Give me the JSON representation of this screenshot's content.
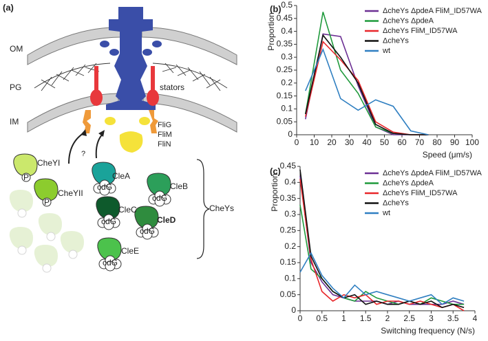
{
  "diagram": {
    "panel_label": "(a)",
    "labels": {
      "om": "OM",
      "pg": "PG",
      "im": "IM",
      "stators": "stators",
      "flig": "FliG",
      "flim": "FliM",
      "flin": "FliN",
      "question": "?",
      "cheyi": "CheYI",
      "cheyii": "CheYII",
      "clea": "CleA",
      "cleb": "CleB",
      "clec": "CleC",
      "cled": "CleD",
      "clee": "CleE",
      "cheys": "CheYs",
      "phospho": "P",
      "cdg": "cdG"
    }
  },
  "chart_data": [
    {
      "type": "line",
      "panel_label": "(b)",
      "x_label": "Speed (μm/s)",
      "y_label": "Proportion",
      "x": [
        5,
        15,
        25,
        35,
        45,
        55,
        65,
        75
      ],
      "xlim": [
        0,
        100
      ],
      "xticks": [
        0,
        10,
        20,
        30,
        40,
        50,
        60,
        70,
        80,
        90,
        100
      ],
      "ylim": [
        0,
        0.5
      ],
      "yticks": [
        0,
        0.05,
        0.1,
        0.15,
        0.2,
        0.25,
        0.3,
        0.35,
        0.4,
        0.45,
        0.5
      ],
      "series": [
        {
          "name": "ΔcheYs ΔpdeA FliM_ID57WA",
          "color": "#6b2f93",
          "values": [
            0.06,
            0.39,
            0.38,
            0.19,
            0.03,
            0,
            0,
            0
          ]
        },
        {
          "name": "ΔcheYs ΔpdeA",
          "color": "#1f9a3c",
          "values": [
            0.08,
            0.475,
            0.25,
            0.16,
            0.03,
            0.005,
            0,
            0
          ]
        },
        {
          "name": "ΔcheYs FliM_ID57WA",
          "color": "#e8262a",
          "values": [
            0.07,
            0.36,
            0.29,
            0.21,
            0.05,
            0.01,
            0,
            0
          ]
        },
        {
          "name": "ΔcheYs",
          "color": "#111111",
          "values": [
            0.08,
            0.385,
            0.3,
            0.2,
            0.04,
            0.005,
            0,
            0
          ]
        },
        {
          "name": "wt",
          "color": "#2f7fc1",
          "values": [
            0.17,
            0.33,
            0.14,
            0.095,
            0.135,
            0.11,
            0.015,
            0
          ]
        }
      ]
    },
    {
      "type": "line",
      "panel_label": "(c)",
      "x_label": "Switching frequency (N/s)",
      "y_label": "Proportion",
      "x": [
        0,
        0.25,
        0.5,
        0.75,
        1,
        1.25,
        1.5,
        1.75,
        2,
        2.25,
        2.5,
        2.75,
        3,
        3.25,
        3.5,
        3.75
      ],
      "xlim": [
        0,
        4
      ],
      "xticks": [
        0,
        0.5,
        1,
        1.5,
        2,
        2.5,
        3,
        3.5,
        4
      ],
      "ylim": [
        0,
        0.45
      ],
      "yticks": [
        0,
        0.05,
        0.1,
        0.15,
        0.2,
        0.25,
        0.3,
        0.35,
        0.4,
        0.45
      ],
      "series": [
        {
          "name": "ΔcheYs ΔpdeA FliM_ID57WA",
          "color": "#6b2f93",
          "values": [
            0.42,
            0.15,
            0.09,
            0.05,
            0.04,
            0.03,
            0.03,
            0.03,
            0.02,
            0.03,
            0.02,
            0.02,
            0.02,
            0.02,
            0.03,
            0.02
          ]
        },
        {
          "name": "ΔcheYs ΔpdeA",
          "color": "#1f9a3c",
          "values": [
            0.33,
            0.13,
            0.1,
            0.06,
            0.04,
            0.03,
            0.06,
            0.04,
            0.03,
            0.02,
            0.03,
            0.02,
            0.04,
            0.03,
            0.02,
            0.02
          ]
        },
        {
          "name": "ΔcheYs FliM_ID57WA",
          "color": "#e8262a",
          "values": [
            0.41,
            0.16,
            0.06,
            0.03,
            0.05,
            0.04,
            0.05,
            0.02,
            0.03,
            0.03,
            0.02,
            0.03,
            0.02,
            0.01,
            0.02,
            0
          ]
        },
        {
          "name": "ΔcheYs",
          "color": "#111111",
          "values": [
            0.44,
            0.17,
            0.1,
            0.06,
            0.04,
            0.05,
            0.02,
            0.03,
            0.02,
            0.02,
            0.03,
            0.02,
            0.03,
            0.01,
            0.02,
            0.01
          ]
        },
        {
          "name": "wt",
          "color": "#2f7fc1",
          "values": [
            0.12,
            0.18,
            0.11,
            0.07,
            0.04,
            0.08,
            0.05,
            0.06,
            0.05,
            0.04,
            0.03,
            0.04,
            0.05,
            0.02,
            0.04,
            0.03
          ]
        }
      ]
    }
  ]
}
